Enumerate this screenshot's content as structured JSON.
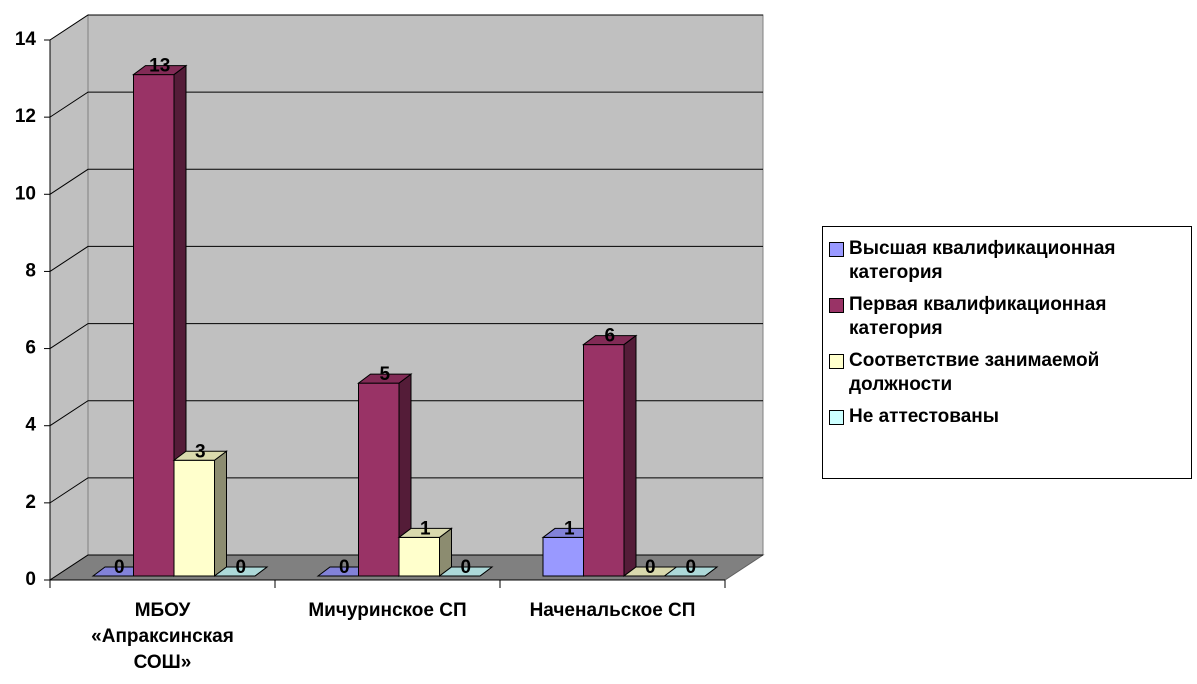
{
  "chart_data": {
    "type": "bar3d",
    "categories": [
      "МБОУ «Апраксинская СОШ»",
      "Мичуринское СП",
      "Наченальское СП"
    ],
    "series": [
      {
        "name": "Высшая квалификационная категория",
        "color": "#9999ff",
        "values": [
          0,
          0,
          1
        ]
      },
      {
        "name": "Первая квалификационная категория",
        "color": "#993366",
        "values": [
          13,
          5,
          6
        ]
      },
      {
        "name": "Соответствие занимаемой должности",
        "color": "#ffffcc",
        "values": [
          3,
          1,
          0
        ]
      },
      {
        "name": "Не аттестованы",
        "color": "#ccffff",
        "values": [
          0,
          0,
          0
        ]
      }
    ],
    "ylim": [
      0,
      14
    ],
    "yticks": [
      0,
      2,
      4,
      6,
      8,
      10,
      12,
      14
    ],
    "grid": true,
    "legend": "right"
  }
}
